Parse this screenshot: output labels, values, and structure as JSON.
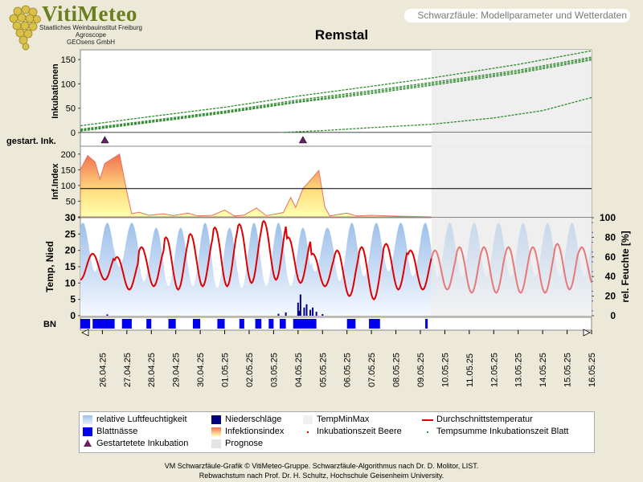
{
  "brand": {
    "name": "VitiMeteo",
    "line1": "Staatliches Weinbauinstitut Freiburg",
    "line2": "Agroscope",
    "line3": "GEOsens GmbH"
  },
  "subtitle": "Schwarzfäule: Modellparameter und Wetterdaten",
  "colors": {
    "background": "#ece9d8",
    "plot_background": "#ffffff",
    "forecast_shade": "#eeeeee",
    "incubation_line": "#2e8b2e",
    "infection_fill_top": "#f08060",
    "infection_fill_bottom": "#ffffa0",
    "humidity": "#a8c8ec",
    "temperature": "#dd0000",
    "precipitation": "#000080",
    "leaf_wetness": "#0000ee",
    "marker": "#6b1f6b"
  },
  "chart_data": {
    "type": "line",
    "title": "Remstal",
    "dates": [
      "26.04.25",
      "27.04.25",
      "28.04.25",
      "29.04.25",
      "30.04.25",
      "01.05.25",
      "02.05.25",
      "03.05.25",
      "04.05.25",
      "05.05.25",
      "06.05.25",
      "07.05.25",
      "08.05.25",
      "09.05.25",
      "10.05.25",
      "11.05.25",
      "12.05.25",
      "13.05.25",
      "14.05.25",
      "15.05.25",
      "16.05.25"
    ],
    "x_range_days": [
      -0.9,
      20.0
    ],
    "forecast_start_day": 13.45,
    "panels": {
      "incubation": {
        "ylabel": "Inkubationen",
        "yticks": [
          0,
          50,
          100,
          150
        ],
        "ylim": [
          0,
          170
        ],
        "series": [
          {
            "points": [
              [
                -0.9,
                14
              ],
              [
                2,
                33
              ],
              [
                5,
                52
              ],
              [
                8,
                75
              ],
              [
                11,
                95
              ],
              [
                13.45,
                112
              ],
              [
                17,
                140
              ],
              [
                20,
                168
              ]
            ]
          },
          {
            "points": [
              [
                -0.9,
                7
              ],
              [
                2,
                25
              ],
              [
                5,
                44
              ],
              [
                8,
                67
              ],
              [
                11,
                86
              ],
              [
                13.45,
                103
              ],
              [
                17,
                128
              ],
              [
                20,
                155
              ]
            ]
          },
          {
            "points": [
              [
                -0.9,
                5
              ],
              [
                2,
                23
              ],
              [
                5,
                42
              ],
              [
                8,
                64
              ],
              [
                11,
                83
              ],
              [
                13.45,
                100
              ],
              [
                17,
                125
              ],
              [
                20,
                152
              ]
            ]
          },
          {
            "points": [
              [
                -0.9,
                3
              ],
              [
                2,
                21
              ],
              [
                5,
                40
              ],
              [
                8,
                62
              ],
              [
                11,
                80
              ],
              [
                13.45,
                97
              ],
              [
                17,
                122
              ],
              [
                20,
                149
              ]
            ]
          },
          {
            "points": [
              [
                7.3,
                0
              ],
              [
                9,
                4
              ],
              [
                11,
                10
              ],
              [
                13.45,
                17
              ],
              [
                16,
                30
              ],
              [
                18,
                45
              ],
              [
                20,
                72
              ]
            ]
          }
        ]
      },
      "started_incubations": {
        "label": "gestart. Ink.",
        "marker_days": [
          0.1,
          8.2
        ]
      },
      "infection_index": {
        "ylabel": "Inf.Index",
        "yticks": [
          0,
          50,
          100,
          150,
          200
        ],
        "ylim": [
          0,
          225
        ],
        "threshold": 90,
        "points": [
          [
            -0.9,
            150
          ],
          [
            -0.6,
            195
          ],
          [
            -0.3,
            175
          ],
          [
            -0.1,
            120
          ],
          [
            0.1,
            170
          ],
          [
            0.4,
            185
          ],
          [
            0.7,
            200
          ],
          [
            1.0,
            80
          ],
          [
            1.2,
            10
          ],
          [
            1.5,
            15
          ],
          [
            1.9,
            5
          ],
          [
            2.5,
            10
          ],
          [
            2.9,
            4
          ],
          [
            3.5,
            12
          ],
          [
            3.9,
            3
          ],
          [
            4.5,
            5
          ],
          [
            5.0,
            22
          ],
          [
            5.4,
            3
          ],
          [
            5.8,
            6
          ],
          [
            6.3,
            28
          ],
          [
            6.7,
            4
          ],
          [
            7.0,
            8
          ],
          [
            7.4,
            14
          ],
          [
            7.7,
            62
          ],
          [
            7.9,
            30
          ],
          [
            8.2,
            90
          ],
          [
            8.6,
            125
          ],
          [
            8.85,
            148
          ],
          [
            9.1,
            30
          ],
          [
            9.3,
            3
          ],
          [
            10.0,
            12
          ],
          [
            10.4,
            3
          ],
          [
            11.0,
            5
          ],
          [
            11.7,
            3
          ],
          [
            12.3,
            2
          ],
          [
            13.45,
            0
          ]
        ]
      },
      "weather": {
        "ylabel_left": "Temp, Nied",
        "ylabel_right": "rel. Feuchte [%]",
        "yticks_left": [
          0,
          5,
          10,
          15,
          20,
          25,
          30
        ],
        "ylim_left": [
          0,
          30
        ],
        "yticks_right": [
          0,
          20,
          40,
          60,
          80,
          100
        ],
        "ylim_right": [
          0,
          100
        ],
        "temperature_mean_day": [
          15,
          13,
          15,
          16,
          17,
          18,
          19,
          20,
          17,
          14,
          13,
          13,
          15,
          14,
          14,
          14,
          14,
          14,
          14,
          15,
          15
        ],
        "temperature_amplitude_day": [
          4,
          5,
          6,
          8,
          8,
          9,
          9,
          9,
          7,
          5,
          7,
          8,
          7,
          6,
          6,
          7,
          7,
          7,
          7,
          7,
          6
        ],
        "humidity_daily_max": [
          95,
          95,
          90,
          90,
          95,
          90,
          95,
          95,
          90,
          90,
          95,
          95,
          95,
          95,
          95,
          95,
          95,
          95,
          95,
          95,
          95
        ],
        "humidity_daily_min": [
          45,
          50,
          35,
          30,
          30,
          28,
          28,
          30,
          30,
          45,
          35,
          40,
          45,
          40,
          40,
          40,
          40,
          40,
          40,
          40,
          40
        ],
        "precipitation": [
          [
            0.2,
            0.4
          ],
          [
            7.2,
            0.6
          ],
          [
            7.5,
            1.0
          ],
          [
            8.0,
            4.0
          ],
          [
            8.05,
            1.5
          ],
          [
            8.1,
            6.5
          ],
          [
            8.25,
            2.5
          ],
          [
            8.35,
            3.5
          ],
          [
            8.5,
            1.8
          ],
          [
            8.6,
            2.5
          ],
          [
            8.75,
            1.2
          ],
          [
            9.0,
            0.5
          ]
        ]
      },
      "leaf_wetness": {
        "label": "BN",
        "intervals": [
          [
            -0.9,
            -0.5
          ],
          [
            -0.4,
            0.5
          ],
          [
            0.8,
            1.2
          ],
          [
            1.8,
            2.0
          ],
          [
            2.7,
            3.0
          ],
          [
            3.7,
            4.0
          ],
          [
            4.7,
            5.0
          ],
          [
            5.6,
            5.8
          ],
          [
            6.25,
            6.5
          ],
          [
            6.8,
            7.0
          ],
          [
            7.25,
            7.5
          ],
          [
            7.8,
            8.75
          ],
          [
            10.0,
            10.35
          ],
          [
            10.9,
            11.35
          ],
          [
            13.2,
            13.3
          ]
        ]
      }
    },
    "legend": [
      {
        "label": "relative Luftfeuchtigkeit"
      },
      {
        "label": "Niederschläge"
      },
      {
        "label": "TempMinMax"
      },
      {
        "label": "Durchschnittstemperatur"
      },
      {
        "label": "Blattnässe"
      },
      {
        "label": "Infektionsindex"
      },
      {
        "label": "Inkubationszeit Beere"
      },
      {
        "label": "Tempsumme Inkubationszeit Blatt"
      },
      {
        "label": "Gestartetete Inkubation"
      },
      {
        "label": "Prognose"
      }
    ]
  },
  "footer": {
    "line1": "VM Schwarzfäule-Grafik © VitiMeteo-Gruppe. Schwarzfäule-Algorithmus nach Dr. D. Molitor, LIST.",
    "line2": "Rebwachstum nach Prof. Dr. H. Schultz, Hochschule Geisenheim University."
  }
}
